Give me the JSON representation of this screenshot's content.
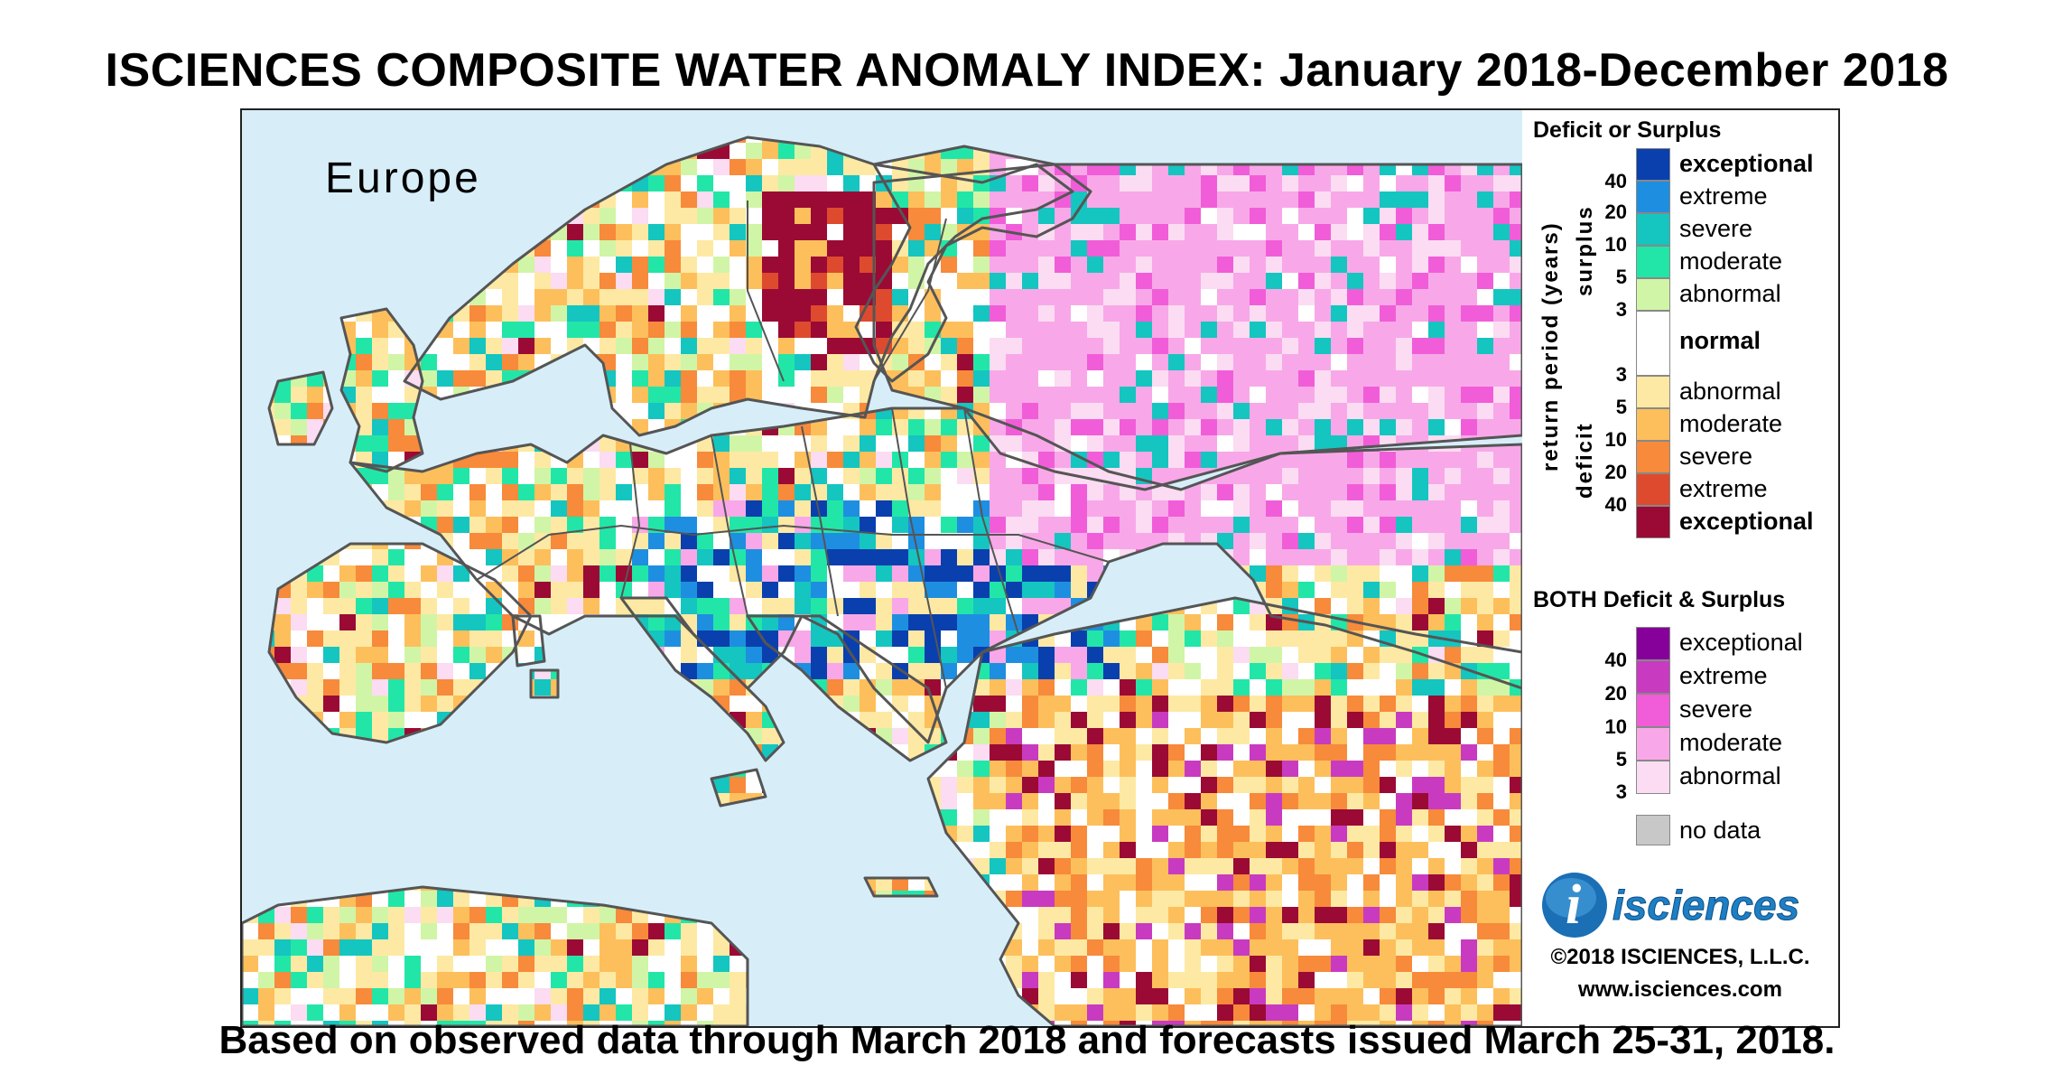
{
  "title": "ISCIENCES COMPOSITE WATER ANOMALY INDEX: January 2018-December 2018",
  "subtitle": "Based on observed data through March 2018 and forecasts issued March 25-31, 2018.",
  "map": {
    "region_label": "Europe",
    "colors": {
      "sea": "#d7eef9",
      "border": "#555555",
      "land_dry_dominant": "#fde9a3",
      "land_normal": "#ffffff"
    }
  },
  "legend": {
    "deficit_surplus": {
      "heading": "Deficit or Surplus",
      "axis_label": "return period (years)",
      "surplus_label": "surplus",
      "deficit_label": "deficit",
      "normal_label": "normal",
      "surplus_numbers": [
        "40",
        "20",
        "10",
        "5",
        "3"
      ],
      "deficit_numbers": [
        "3",
        "5",
        "10",
        "20",
        "40"
      ],
      "surplus_classes": [
        {
          "label": "exceptional",
          "color": "#0a3fae"
        },
        {
          "label": "extreme",
          "color": "#1e8fe0"
        },
        {
          "label": "severe",
          "color": "#15c5c0"
        },
        {
          "label": "moderate",
          "color": "#22e6a8"
        },
        {
          "label": "abnormal",
          "color": "#d1f5a6"
        }
      ],
      "normal_color": "#ffffff",
      "deficit_classes": [
        {
          "label": "abnormal",
          "color": "#fde9a3"
        },
        {
          "label": "moderate",
          "color": "#fdbf5b"
        },
        {
          "label": "severe",
          "color": "#f78a3b"
        },
        {
          "label": "extreme",
          "color": "#de4a2e"
        },
        {
          "label": "exceptional",
          "color": "#9a0a35"
        }
      ]
    },
    "both": {
      "heading": "BOTH Deficit & Surplus",
      "numbers": [
        "40",
        "20",
        "10",
        "5",
        "3"
      ],
      "classes": [
        {
          "label": "exceptional",
          "color": "#86009a"
        },
        {
          "label": "extreme",
          "color": "#c83bc0"
        },
        {
          "label": "severe",
          "color": "#f15dd8"
        },
        {
          "label": "moderate",
          "color": "#f8a8e8"
        },
        {
          "label": "abnormal",
          "color": "#fbdcf2"
        }
      ]
    },
    "no_data": {
      "label": "no data",
      "color": "#c8c8c8"
    },
    "logo_text": "isciences",
    "logo_i": "i",
    "copyright": "©2018 ISCIENCES, L.L.C.",
    "url": "www.isciences.com"
  }
}
